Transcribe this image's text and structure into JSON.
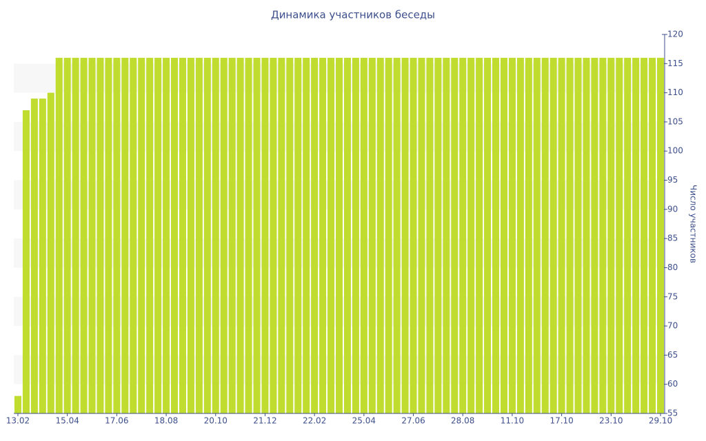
{
  "chart_data": {
    "type": "bar",
    "title": "Динамика участников беседы",
    "y_axis_label": "Число участников",
    "y_axis_side": "right",
    "categories": [
      "13.02",
      null,
      null,
      null,
      null,
      null,
      "15.04",
      null,
      null,
      null,
      null,
      null,
      "17.06",
      null,
      null,
      null,
      null,
      null,
      "18.08",
      null,
      null,
      null,
      null,
      null,
      "20.10",
      null,
      null,
      null,
      null,
      null,
      "21.12",
      null,
      null,
      null,
      null,
      null,
      "22.02",
      null,
      null,
      null,
      null,
      null,
      "25.04",
      null,
      null,
      null,
      null,
      null,
      "27.06",
      null,
      null,
      null,
      null,
      null,
      "28.08",
      null,
      null,
      null,
      null,
      null,
      "11.10",
      null,
      null,
      null,
      null,
      null,
      "17.10",
      null,
      null,
      null,
      null,
      null,
      "23.10",
      null,
      null,
      null,
      null,
      null,
      "29.10"
    ],
    "values": [
      58,
      107,
      109,
      109,
      110,
      116,
      116,
      116,
      116,
      116,
      116,
      116,
      116,
      116,
      116,
      116,
      116,
      116,
      116,
      116,
      116,
      116,
      116,
      116,
      116,
      116,
      116,
      116,
      116,
      116,
      116,
      116,
      116,
      116,
      116,
      116,
      116,
      116,
      116,
      116,
      116,
      116,
      116,
      116,
      116,
      116,
      116,
      116,
      116,
      116,
      116,
      116,
      116,
      116,
      116,
      116,
      116,
      116,
      116,
      116,
      116,
      116,
      116,
      116,
      116,
      116,
      116,
      116,
      116,
      116,
      116,
      116,
      116,
      116,
      116,
      116,
      116,
      116,
      116
    ],
    "color": "#c0dc2e",
    "ylim": [
      55,
      120
    ],
    "yticks": [
      55,
      60,
      65,
      70,
      75,
      80,
      85,
      90,
      95,
      100,
      105,
      110,
      115,
      120
    ],
    "bands": true
  }
}
